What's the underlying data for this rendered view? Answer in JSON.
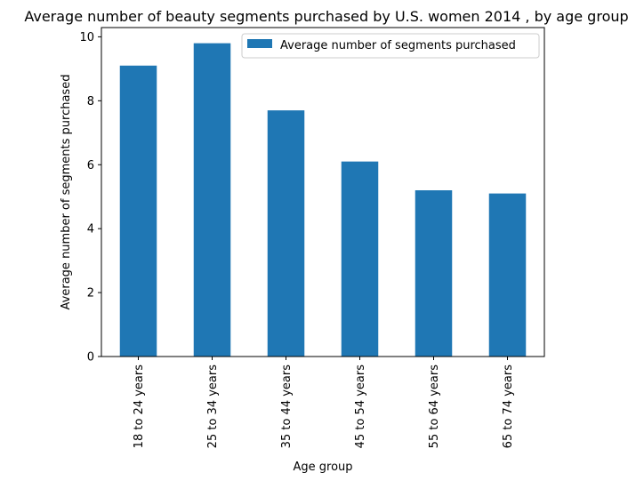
{
  "chart_data": {
    "type": "bar",
    "title": "Average number of beauty segments purchased by U.S. women 2014 , by age group",
    "xlabel": "Age group",
    "ylabel": "Average number of segments purchased",
    "categories": [
      "18 to 24 years",
      "25 to 34 years",
      "35 to 44 years",
      "45 to 54 years",
      "55 to 64 years",
      "65 to 74 years"
    ],
    "series": [
      {
        "name": "Average number of segments purchased",
        "values": [
          9.1,
          9.8,
          7.7,
          6.1,
          5.2,
          5.1
        ],
        "color": "#1f77b4"
      }
    ],
    "ylim": [
      0,
      10.29
    ],
    "yticks": [
      0,
      2,
      4,
      6,
      8,
      10
    ],
    "grid": false,
    "legend_position": "top-right"
  }
}
